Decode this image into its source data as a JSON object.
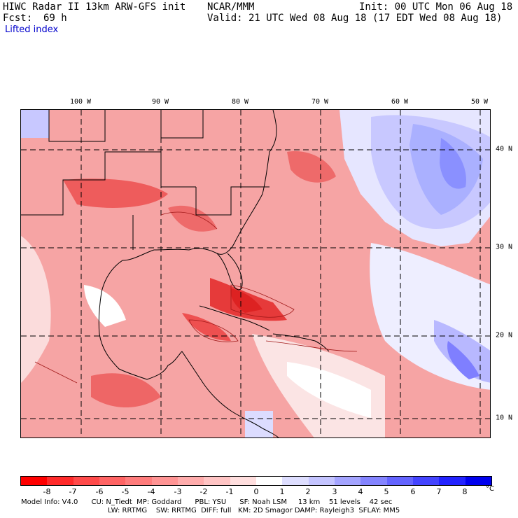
{
  "header": {
    "title_left": "HIWC Radar II 13km ARW-GFS init",
    "org": "NCAR/MMM",
    "init": "Init: 00 UTC Mon 06 Aug 18",
    "fcst_label": "Fcst:",
    "fcst_value": "69 h",
    "valid": "Valid: 21 UTC Wed 08 Aug 18 (17 EDT Wed 08 Aug 18)",
    "field": "Lifted index"
  },
  "map": {
    "lon_labels": [
      "100 W",
      "90 W",
      "80 W",
      "70 W",
      "60 W",
      "50 W"
    ],
    "lat_labels": [
      "40 N",
      "30 N",
      "20 N",
      "10 N"
    ]
  },
  "colorbar": {
    "labels": [
      "-8",
      "-7",
      "-6",
      "-5",
      "-4",
      "-3",
      "-2",
      "-1",
      "0",
      "1",
      "2",
      "3",
      "4",
      "5",
      "6",
      "7",
      "8"
    ],
    "unit": "°C",
    "colors": [
      "#ff0000",
      "#ff2a2a",
      "#ff4a4a",
      "#ff6464",
      "#ff7c7c",
      "#ff9494",
      "#ffacac",
      "#ffc4c4",
      "#ffdede",
      "#ffffff",
      "#dedeff",
      "#c4c4ff",
      "#a4a4ff",
      "#8484ff",
      "#6464ff",
      "#4444ff",
      "#2222ff",
      "#0000ee"
    ]
  },
  "footer": {
    "line1": "Model Info: V4.0      CU: N_Tiedt  MP: Goddard      PBL: YSU      SF: Noah LSM     13 km    51 levels    42 sec",
    "line2": "LW: RRTMG    SW: RRTMG  DIFF: full   KM: 2D Smagor DAMP: Rayleigh3  SFLAY: MM5"
  }
}
